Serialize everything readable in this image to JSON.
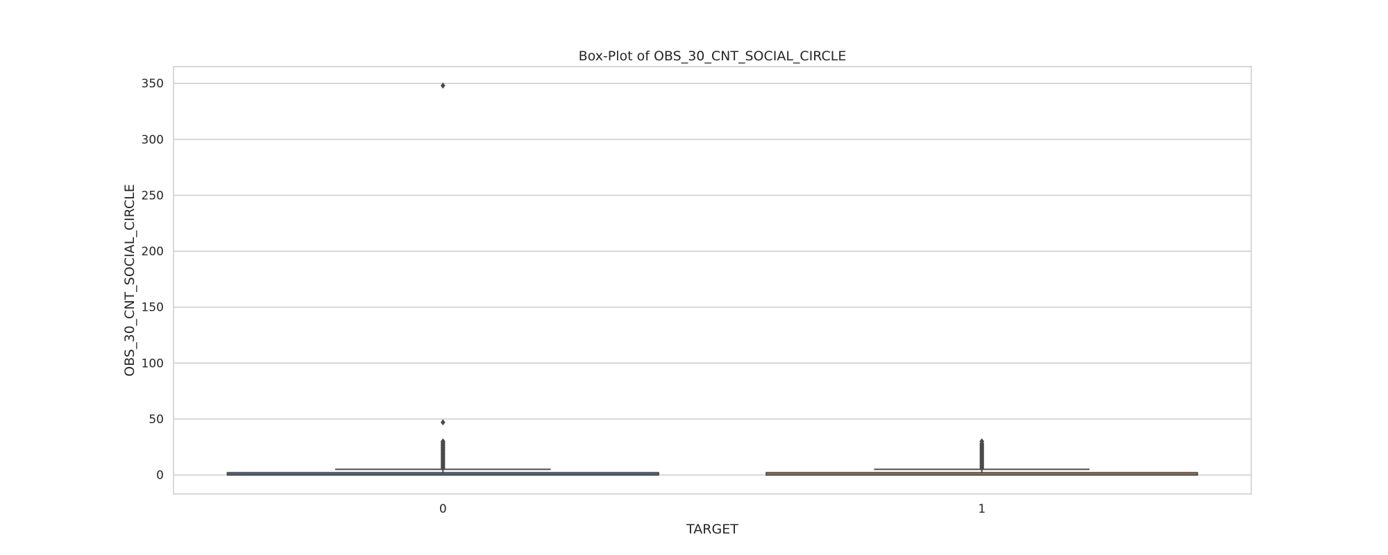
{
  "chart_data": {
    "type": "box",
    "title": "Box-Plot of OBS_30_CNT_SOCIAL_CIRCLE",
    "xlabel": "TARGET",
    "ylabel": "OBS_30_CNT_SOCIAL_CIRCLE",
    "categories": [
      "0",
      "1"
    ],
    "ylim": [
      -17,
      365
    ],
    "yticks": [
      0,
      50,
      100,
      150,
      200,
      250,
      300,
      350
    ],
    "grid": true,
    "boxes": [
      {
        "category": "0",
        "min": 0,
        "q1": 0,
        "median": 0,
        "q3": 2,
        "max": 5,
        "outliers": [
          6,
          7,
          8,
          9,
          10,
          11,
          12,
          13,
          14,
          15,
          16,
          17,
          18,
          19,
          20,
          21,
          22,
          23,
          24,
          25,
          26,
          27,
          28,
          29,
          30,
          47,
          348
        ],
        "color": "#4c72b0"
      },
      {
        "category": "1",
        "min": 0,
        "q1": 0,
        "median": 0,
        "q3": 2,
        "max": 5,
        "outliers": [
          6,
          7,
          8,
          9,
          10,
          11,
          12,
          13,
          14,
          15,
          16,
          17,
          18,
          19,
          20,
          21,
          22,
          23,
          24,
          25,
          26,
          27,
          28,
          30
        ],
        "color": "#dd8452"
      }
    ]
  }
}
